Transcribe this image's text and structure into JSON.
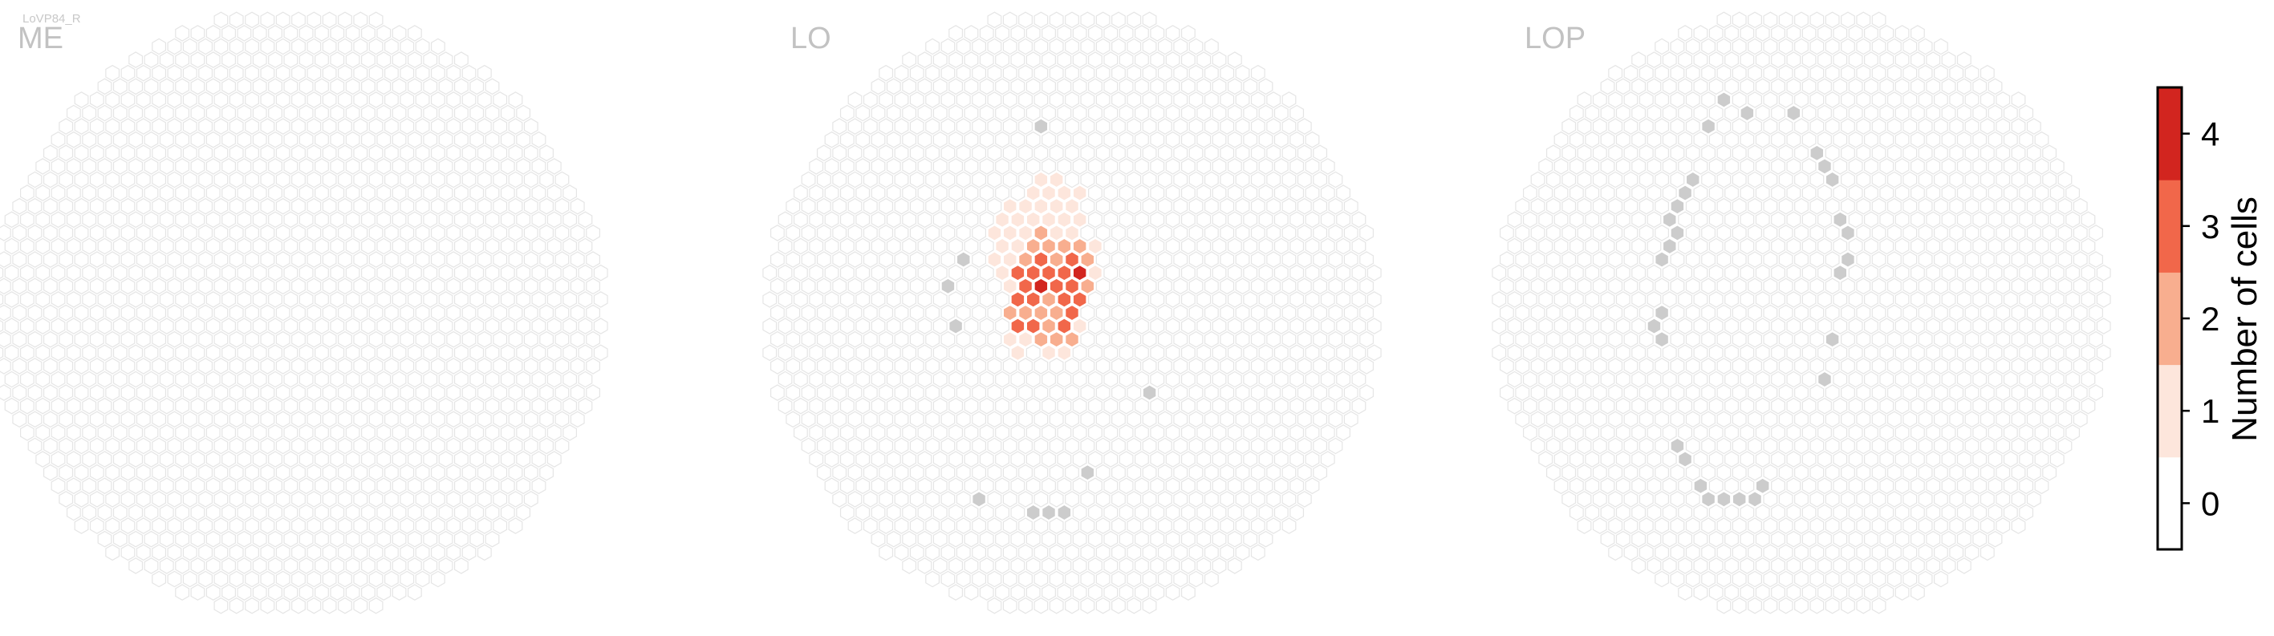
{
  "figure": {
    "cell_type_label": "LoVP84_R"
  },
  "chart_data": {
    "type": "heatmap",
    "description_units": "hexagonal column map; value = number of cells per column",
    "panels": [
      {
        "title": "ME",
        "inactive_columns": [],
        "cells": []
      },
      {
        "title": "LO",
        "inactive_columns": [
          [
            -4,
            -15
          ],
          [
            -4,
            -14
          ],
          [
            -14,
            -4
          ],
          [
            -15,
            1
          ],
          [
            -16,
            -2
          ],
          [
            -14,
            5
          ],
          [
            -14,
            11
          ],
          [
            -14,
            13
          ],
          [
            -12,
            14
          ],
          [
            -11,
            14
          ],
          [
            -10,
            13
          ],
          [
            -9,
            14
          ],
          [
            -8,
            15
          ],
          [
            -5,
            15
          ],
          [
            -3,
            15
          ],
          [
            -1,
            15
          ],
          [
            2,
            12
          ],
          [
            7,
            10
          ],
          [
            10,
            6
          ]
        ],
        "cells": [
          {
            "h": -2,
            "v": -11,
            "value": 1
          },
          {
            "h": -5,
            "v": -10,
            "value": 1
          },
          {
            "h": -4,
            "v": -10,
            "value": 1
          },
          {
            "h": -2,
            "v": -10,
            "value": 1
          },
          {
            "h": -1,
            "v": -10,
            "value": 1
          },
          {
            "h": -6,
            "v": -9,
            "value": 1
          },
          {
            "h": -5,
            "v": -9,
            "value": 1
          },
          {
            "h": -3,
            "v": -9,
            "value": 1
          },
          {
            "h": -2,
            "v": -9,
            "value": 1
          },
          {
            "h": -1,
            "v": -9,
            "value": 1
          },
          {
            "h": 0,
            "v": -9,
            "value": 1
          },
          {
            "h": 1,
            "v": -9,
            "value": 1
          },
          {
            "h": -8,
            "v": -8,
            "value": 1
          },
          {
            "h": -7,
            "v": -8,
            "value": 1
          },
          {
            "h": -6,
            "v": -8,
            "value": 1
          },
          {
            "h": -4,
            "v": -8,
            "value": 1
          },
          {
            "h": -3,
            "v": -8,
            "value": 1
          },
          {
            "h": -2,
            "v": -8,
            "value": 1
          },
          {
            "h": -1,
            "v": -8,
            "value": 1
          },
          {
            "h": 0,
            "v": -8,
            "value": 1
          },
          {
            "h": -9,
            "v": -7,
            "value": 1
          },
          {
            "h": -8,
            "v": -7,
            "value": 1
          },
          {
            "h": -7,
            "v": -7,
            "value": 1
          },
          {
            "h": -6,
            "v": -7,
            "value": 1
          },
          {
            "h": -5,
            "v": -7,
            "value": 1
          },
          {
            "h": -4,
            "v": -7,
            "value": 1
          },
          {
            "h": -3,
            "v": -7,
            "value": 1
          },
          {
            "h": -2,
            "v": -7,
            "value": 1
          },
          {
            "h": -1,
            "v": -7,
            "value": 1
          },
          {
            "h": 0,
            "v": -7,
            "value": 1
          },
          {
            "h": 1,
            "v": -7,
            "value": 1
          },
          {
            "h": -10,
            "v": -6,
            "value": 1
          },
          {
            "h": -9,
            "v": -6,
            "value": 1
          },
          {
            "h": -8,
            "v": -6,
            "value": 1
          },
          {
            "h": -7,
            "v": -6,
            "value": 1
          },
          {
            "h": -6,
            "v": -6,
            "value": 1
          },
          {
            "h": -5,
            "v": -6,
            "value": 2
          },
          {
            "h": -4,
            "v": -6,
            "value": 2
          },
          {
            "h": -3,
            "v": -6,
            "value": 3
          },
          {
            "h": -2,
            "v": -6,
            "value": 1
          },
          {
            "h": -1,
            "v": -6,
            "value": 2
          },
          {
            "h": 0,
            "v": -6,
            "value": 1
          },
          {
            "h": -9,
            "v": -5,
            "value": 1
          },
          {
            "h": -8,
            "v": -5,
            "value": 1
          },
          {
            "h": -7,
            "v": -5,
            "value": 1
          },
          {
            "h": -6,
            "v": -5,
            "value": 2
          },
          {
            "h": -5,
            "v": -5,
            "value": 2
          },
          {
            "h": -4,
            "v": -5,
            "value": 1
          },
          {
            "h": -3,
            "v": -5,
            "value": 2
          },
          {
            "h": -2,
            "v": -5,
            "value": 2
          },
          {
            "h": -1,
            "v": -5,
            "value": 2
          },
          {
            "h": 0,
            "v": -5,
            "value": 2
          },
          {
            "h": 1,
            "v": -5,
            "value": 2
          },
          {
            "h": 2,
            "v": -5,
            "value": 1
          },
          {
            "h": 3,
            "v": -5,
            "value": 1
          },
          {
            "h": -10,
            "v": -4,
            "value": 1
          },
          {
            "h": -9,
            "v": -4,
            "value": 1
          },
          {
            "h": -8,
            "v": -4,
            "value": 1
          },
          {
            "h": -7,
            "v": -4,
            "value": 1
          },
          {
            "h": -6,
            "v": -4,
            "value": 2
          },
          {
            "h": -5,
            "v": -4,
            "value": 3
          },
          {
            "h": -4,
            "v": -4,
            "value": 3
          },
          {
            "h": -3,
            "v": -4,
            "value": 2
          },
          {
            "h": -2,
            "v": -4,
            "value": 2
          },
          {
            "h": -1,
            "v": -4,
            "value": 2
          },
          {
            "h": 0,
            "v": -4,
            "value": 3
          },
          {
            "h": 1,
            "v": -4,
            "value": 2
          },
          {
            "h": 2,
            "v": -4,
            "value": 2
          },
          {
            "h": 3,
            "v": -4,
            "value": 1
          },
          {
            "h": -10,
            "v": -3,
            "value": 2
          },
          {
            "h": -9,
            "v": -3,
            "value": 1
          },
          {
            "h": -8,
            "v": -3,
            "value": 2
          },
          {
            "h": -7,
            "v": -3,
            "value": 3
          },
          {
            "h": -6,
            "v": -3,
            "value": 3
          },
          {
            "h": -5,
            "v": -3,
            "value": 3
          },
          {
            "h": -4,
            "v": -3,
            "value": 2
          },
          {
            "h": -3,
            "v": -3,
            "value": 3
          },
          {
            "h": -2,
            "v": -3,
            "value": 4
          },
          {
            "h": -1,
            "v": -3,
            "value": 3
          },
          {
            "h": 0,
            "v": -3,
            "value": 4
          },
          {
            "h": 1,
            "v": -3,
            "value": 4
          },
          {
            "h": 2,
            "v": -3,
            "value": 2
          },
          {
            "h": 3,
            "v": -3,
            "value": 1
          },
          {
            "h": 4,
            "v": -3,
            "value": 1
          },
          {
            "h": -9,
            "v": -2,
            "value": 1
          },
          {
            "h": -8,
            "v": -2,
            "value": 1
          },
          {
            "h": -7,
            "v": -2,
            "value": 2
          },
          {
            "h": -6,
            "v": -2,
            "value": 3
          },
          {
            "h": -5,
            "v": -2,
            "value": 3
          },
          {
            "h": -4,
            "v": -2,
            "value": 4
          },
          {
            "h": -3,
            "v": -2,
            "value": 3
          },
          {
            "h": -2,
            "v": -2,
            "value": 3
          },
          {
            "h": -1,
            "v": -2,
            "value": 3
          },
          {
            "h": 0,
            "v": -2,
            "value": 3
          },
          {
            "h": 1,
            "v": -2,
            "value": 2
          },
          {
            "h": 2,
            "v": -2,
            "value": 2
          },
          {
            "h": 3,
            "v": -2,
            "value": 1
          },
          {
            "h": -8,
            "v": -1,
            "value": 1
          },
          {
            "h": -7,
            "v": -1,
            "value": 3
          },
          {
            "h": -6,
            "v": -1,
            "value": 2
          },
          {
            "h": -5,
            "v": -1,
            "value": 3
          },
          {
            "h": -4,
            "v": -1,
            "value": 2
          },
          {
            "h": -3,
            "v": -1,
            "value": 2
          },
          {
            "h": -2,
            "v": -1,
            "value": 3
          },
          {
            "h": -1,
            "v": -1,
            "value": 3
          },
          {
            "h": 0,
            "v": -1,
            "value": 2
          },
          {
            "h": 1,
            "v": -1,
            "value": 3
          },
          {
            "h": 2,
            "v": -1,
            "value": 2
          },
          {
            "h": -9,
            "v": 0,
            "value": 1
          },
          {
            "h": -8,
            "v": 0,
            "value": 2
          },
          {
            "h": -7,
            "v": 0,
            "value": 2
          },
          {
            "h": -6,
            "v": 0,
            "value": 2
          },
          {
            "h": -5,
            "v": 0,
            "value": 2
          },
          {
            "h": -4,
            "v": 0,
            "value": 2
          },
          {
            "h": -3,
            "v": 0,
            "value": 3
          },
          {
            "h": -2,
            "v": 0,
            "value": 2
          },
          {
            "h": -1,
            "v": 0,
            "value": 2
          },
          {
            "h": 0,
            "v": 0,
            "value": 3
          },
          {
            "h": 1,
            "v": 0,
            "value": 1
          },
          {
            "h": -8,
            "v": 1,
            "value": 1
          },
          {
            "h": -7,
            "v": 1,
            "value": 3
          },
          {
            "h": -6,
            "v": 1,
            "value": 2
          },
          {
            "h": -5,
            "v": 1,
            "value": 3
          },
          {
            "h": -4,
            "v": 1,
            "value": 2
          },
          {
            "h": -3,
            "v": 1,
            "value": 2
          },
          {
            "h": -2,
            "v": 1,
            "value": 2
          },
          {
            "h": -1,
            "v": 1,
            "value": 3
          },
          {
            "h": 0,
            "v": 1,
            "value": 2
          },
          {
            "h": 1,
            "v": 1,
            "value": 1
          },
          {
            "h": -8,
            "v": 2,
            "value": 1
          },
          {
            "h": -7,
            "v": 2,
            "value": 2
          },
          {
            "h": -6,
            "v": 2,
            "value": 1
          },
          {
            "h": -5,
            "v": 2,
            "value": 1
          },
          {
            "h": -4,
            "v": 2,
            "value": 2
          },
          {
            "h": -3,
            "v": 2,
            "value": 1
          },
          {
            "h": -2,
            "v": 2,
            "value": 2
          },
          {
            "h": -1,
            "v": 2,
            "value": 1
          },
          {
            "h": 0,
            "v": 2,
            "value": 2
          },
          {
            "h": -7,
            "v": 3,
            "value": 1
          },
          {
            "h": -6,
            "v": 3,
            "value": 1
          },
          {
            "h": -4,
            "v": 3,
            "value": 3
          },
          {
            "h": -3,
            "v": 3,
            "value": 1
          },
          {
            "h": -2,
            "v": 3,
            "value": 1
          },
          {
            "h": -1,
            "v": 3,
            "value": 1
          }
        ]
      },
      {
        "title": "LOP",
        "inactive_columns": [
          [
            -10,
            -16
          ],
          [
            -9,
            -16
          ],
          [
            -12,
            -14
          ],
          [
            -11,
            -14
          ],
          [
            -7,
            -15
          ],
          [
            -6,
            -15
          ],
          [
            -13,
            -12
          ],
          [
            -14,
            -11
          ],
          [
            -15,
            -10
          ],
          [
            -14,
            -10
          ],
          [
            -15,
            -9
          ],
          [
            -16,
            -8
          ],
          [
            -17,
            -7
          ],
          [
            -16,
            -6
          ],
          [
            -17,
            -5
          ],
          [
            -18,
            -4
          ],
          [
            -18,
            -3
          ],
          [
            -19,
            -2
          ],
          [
            -18,
            -1
          ],
          [
            -18,
            0
          ],
          [
            -19,
            1
          ],
          [
            -18,
            2
          ],
          [
            -18,
            3
          ],
          [
            -18,
            5
          ],
          [
            -18,
            7
          ],
          [
            -17,
            8
          ],
          [
            -16,
            9
          ],
          [
            -16,
            10
          ],
          [
            -16,
            11
          ],
          [
            -15,
            11
          ],
          [
            -15,
            12
          ],
          [
            -14,
            13
          ],
          [
            -13,
            13
          ],
          [
            -12,
            14
          ],
          [
            -11,
            14
          ],
          [
            -10,
            14
          ],
          [
            -8,
            14
          ],
          [
            -6,
            14
          ],
          [
            -5,
            13
          ],
          [
            -4,
            13
          ],
          [
            -3,
            12
          ],
          [
            -1,
            10
          ],
          [
            0,
            9
          ],
          [
            1,
            8
          ],
          [
            2,
            7
          ],
          [
            3,
            5
          ],
          [
            3,
            4
          ],
          [
            4,
            3
          ],
          [
            4,
            2
          ],
          [
            5,
            -2
          ],
          [
            5,
            -3
          ],
          [
            6,
            -4
          ],
          [
            6,
            -5
          ],
          [
            6,
            -6
          ],
          [
            6,
            -7
          ],
          [
            5,
            -7
          ],
          [
            5,
            -8
          ],
          [
            4,
            -9
          ],
          [
            4,
            -10
          ],
          [
            3,
            -11
          ],
          [
            2,
            -12
          ],
          [
            1,
            -14
          ],
          [
            -1,
            -15
          ],
          [
            -2,
            -15
          ]
        ],
        "cells": []
      }
    ],
    "colorbar": {
      "label": "Number of cells",
      "ticks": [
        "0",
        "1",
        "2",
        "3",
        "4"
      ],
      "range": [
        -0.5,
        4.5
      ],
      "colors": [
        "#ffffff",
        "#fde6dc",
        "#f8ae8f",
        "#f1674a",
        "#d2251f"
      ]
    },
    "colors": {
      "empty_column_fill": "#ffffff",
      "empty_column_stroke": "#e5e5e5",
      "inactive_column_fill": "#cccccc",
      "title_color": "#c2c2c2"
    }
  }
}
